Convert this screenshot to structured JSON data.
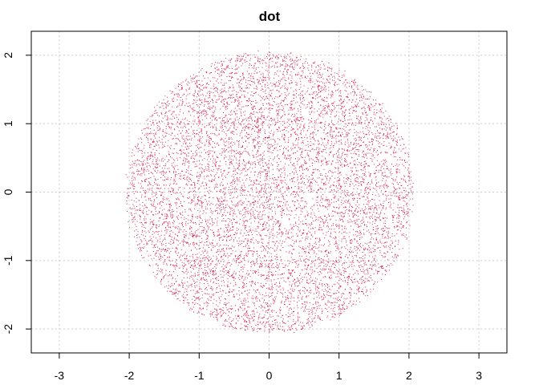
{
  "chart_data": {
    "type": "scatter",
    "title": "dot",
    "xlabel": "",
    "ylabel": "",
    "xlim": [
      -3.4,
      3.4
    ],
    "ylim": [
      -2.35,
      2.35
    ],
    "x_ticks": [
      -3,
      -2,
      -1,
      0,
      1,
      2,
      3
    ],
    "y_ticks": [
      -2,
      -1,
      0,
      1,
      2
    ],
    "grid": true,
    "point_color": "#D6204F",
    "grid_color": "#CCCCCC",
    "points_description": "approximately uniform random points filling a disk of radius about 2 centered at the origin",
    "disk_center": [
      0,
      0
    ],
    "disk_radius": 2.05,
    "n_points": 9000
  }
}
